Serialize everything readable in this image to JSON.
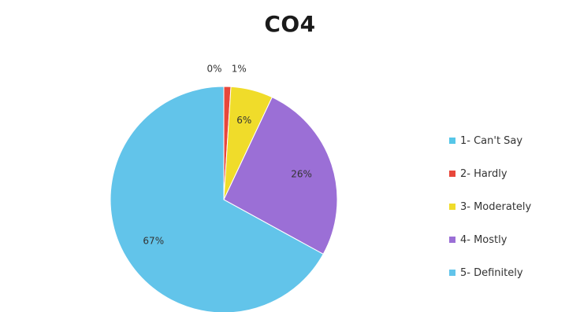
{
  "chart_data": {
    "type": "pie",
    "title": "CO4",
    "categories": [
      "1- Can't Say",
      "2- Hardly",
      "3- Moderately",
      "4- Mostly",
      "5- Definitely"
    ],
    "values": [
      0,
      1,
      6,
      26,
      67
    ],
    "labels": [
      "0%",
      "1%",
      "6%",
      "26%",
      "67%"
    ],
    "colors": [
      "#56c6e8",
      "#e8473b",
      "#f0dc2a",
      "#9b6fd6",
      "#62c4ea"
    ],
    "legend_position": "right",
    "grid": false
  }
}
